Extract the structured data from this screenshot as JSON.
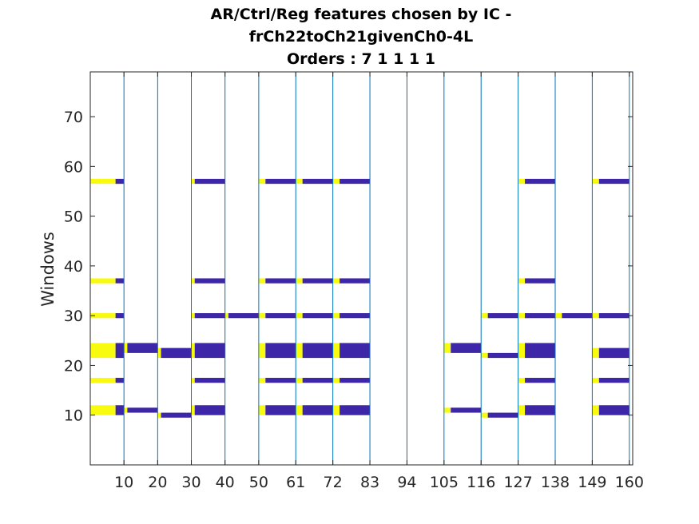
{
  "chart_data": {
    "type": "heatmap",
    "title_lines": [
      "AR/Ctrl/Reg features chosen by IC -",
      "frCh22toCh21givenCh0-4L",
      "Orders : 7 1 1 1 1"
    ],
    "xlabel": "",
    "ylabel": "Windows",
    "xlim": [
      0,
      161
    ],
    "ylim": [
      0,
      79
    ],
    "xticks": [
      10,
      20,
      30,
      40,
      50,
      61,
      72,
      83,
      94,
      105,
      116,
      127,
      138,
      149,
      160
    ],
    "yticks": [
      10,
      20,
      30,
      40,
      50,
      60,
      70
    ],
    "grid": false,
    "colors": {
      "high": "#f9fb0e",
      "low": "#3e26a8",
      "separator": "#0072bd",
      "axis": "#262626",
      "background": "#ffffff"
    },
    "separators": [
      10,
      20,
      30,
      40,
      50,
      61,
      72,
      83,
      94,
      105,
      116,
      127,
      138,
      149,
      160
    ],
    "segments": [
      {
        "x0": 0,
        "x1": 10,
        "rows": [
          {
            "y": 10,
            "h": 2,
            "split": 7.5
          },
          {
            "y": 16.5,
            "h": 1,
            "split": 7.5
          },
          {
            "y": 21.5,
            "h": 3,
            "split": 7.5
          },
          {
            "y": 29.5,
            "h": 1,
            "split": 7.5
          },
          {
            "y": 36.5,
            "h": 1,
            "split": 7.5
          },
          {
            "y": 56.5,
            "h": 1,
            "split": 7.5
          }
        ]
      },
      {
        "x0": 10,
        "x1": 20,
        "rows": [
          {
            "y": 10.5,
            "h": 1,
            "split": 11
          },
          {
            "y": 22.5,
            "h": 2,
            "split": 11
          }
        ]
      },
      {
        "x0": 20,
        "x1": 30,
        "rows": [
          {
            "y": 9.5,
            "h": 1,
            "split": 21
          },
          {
            "y": 21.5,
            "h": 2,
            "split": 21
          }
        ]
      },
      {
        "x0": 30,
        "x1": 40,
        "rows": [
          {
            "y": 10,
            "h": 2,
            "split": 31
          },
          {
            "y": 16.5,
            "h": 1,
            "split": 31
          },
          {
            "y": 21.5,
            "h": 3,
            "split": 31
          },
          {
            "y": 29.5,
            "h": 1,
            "split": 31
          },
          {
            "y": 36.5,
            "h": 1,
            "split": 31
          },
          {
            "y": 56.5,
            "h": 1,
            "split": 31
          }
        ]
      },
      {
        "x0": 40,
        "x1": 50,
        "rows": [
          {
            "y": 29.5,
            "h": 1,
            "split": 41
          }
        ]
      },
      {
        "x0": 50,
        "x1": 61,
        "rows": [
          {
            "y": 10,
            "h": 2,
            "split": 52
          },
          {
            "y": 16.5,
            "h": 1,
            "split": 52
          },
          {
            "y": 21.5,
            "h": 3,
            "split": 52
          },
          {
            "y": 29.5,
            "h": 1,
            "split": 52
          },
          {
            "y": 36.5,
            "h": 1,
            "split": 52
          },
          {
            "y": 56.5,
            "h": 1,
            "split": 52
          }
        ]
      },
      {
        "x0": 61,
        "x1": 72,
        "rows": [
          {
            "y": 10,
            "h": 2,
            "split": 63
          },
          {
            "y": 16.5,
            "h": 1,
            "split": 63
          },
          {
            "y": 21.5,
            "h": 3,
            "split": 63
          },
          {
            "y": 29.5,
            "h": 1,
            "split": 63
          },
          {
            "y": 36.5,
            "h": 1,
            "split": 63
          },
          {
            "y": 56.5,
            "h": 1,
            "split": 63
          }
        ]
      },
      {
        "x0": 72,
        "x1": 83,
        "rows": [
          {
            "y": 10,
            "h": 2,
            "split": 74
          },
          {
            "y": 16.5,
            "h": 1,
            "split": 74
          },
          {
            "y": 21.5,
            "h": 3,
            "split": 74
          },
          {
            "y": 29.5,
            "h": 1,
            "split": 74
          },
          {
            "y": 36.5,
            "h": 1,
            "split": 74
          },
          {
            "y": 56.5,
            "h": 1,
            "split": 74
          }
        ]
      },
      {
        "x0": 105,
        "x1": 116,
        "rows": [
          {
            "y": 10.5,
            "h": 1,
            "split": 107
          },
          {
            "y": 22.5,
            "h": 2,
            "split": 107
          }
        ]
      },
      {
        "x0": 116,
        "x1": 127,
        "rows": [
          {
            "y": 9.5,
            "h": 1,
            "split": 118
          },
          {
            "y": 21.5,
            "h": 1,
            "split": 118
          },
          {
            "y": 29.5,
            "h": 1,
            "split": 118
          }
        ]
      },
      {
        "x0": 127,
        "x1": 138,
        "rows": [
          {
            "y": 10,
            "h": 2,
            "split": 129
          },
          {
            "y": 16.5,
            "h": 1,
            "split": 129
          },
          {
            "y": 21.5,
            "h": 3,
            "split": 129
          },
          {
            "y": 29.5,
            "h": 1,
            "split": 129
          },
          {
            "y": 36.5,
            "h": 1,
            "split": 129
          },
          {
            "y": 56.5,
            "h": 1,
            "split": 129
          }
        ]
      },
      {
        "x0": 138,
        "x1": 149,
        "rows": [
          {
            "y": 29.5,
            "h": 1,
            "split": 140
          }
        ]
      },
      {
        "x0": 149,
        "x1": 160,
        "rows": [
          {
            "y": 10,
            "h": 2,
            "split": 151
          },
          {
            "y": 16.5,
            "h": 1,
            "split": 151
          },
          {
            "y": 21.5,
            "h": 2,
            "split": 151
          },
          {
            "y": 29.5,
            "h": 1,
            "split": 151
          },
          {
            "y": 56.5,
            "h": 1,
            "split": 151
          }
        ]
      }
    ]
  }
}
